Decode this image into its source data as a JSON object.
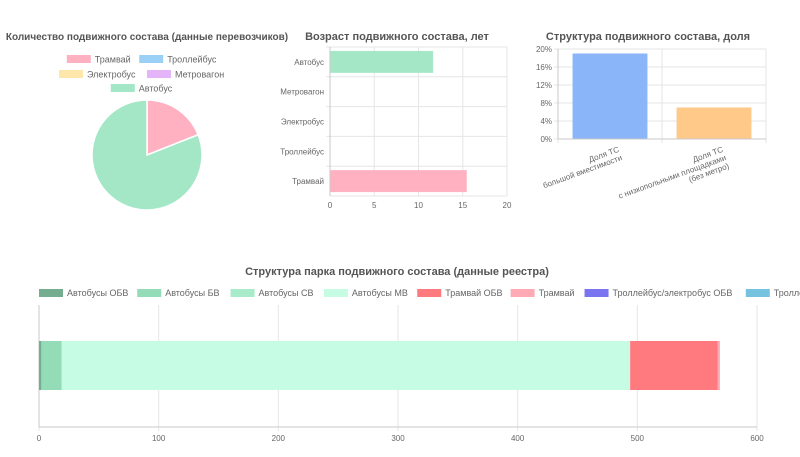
{
  "chart_data": [
    {
      "type": "pie",
      "title": "Количество подвижного состава (данные перевозчиков)",
      "legend_position": "top",
      "slices": [
        {
          "label": "Трамвай",
          "value": 19,
          "color": "#ffb1c1"
        },
        {
          "label": "Троллейбус",
          "value": 0,
          "color": "#9ad0f5"
        },
        {
          "label": "Электробус",
          "value": 0,
          "color": "#ffe6aa"
        },
        {
          "label": "Метровагон",
          "value": 0,
          "color": "#e5b3f7"
        },
        {
          "label": "Автобус",
          "value": 81,
          "color": "#a3e7c6"
        }
      ]
    },
    {
      "type": "bar",
      "orientation": "horizontal",
      "title": "Возраст подвижного состава, лет",
      "categories": [
        "Автобус",
        "Метровагон",
        "Электробус",
        "Троллейбус",
        "Трамвай"
      ],
      "values": [
        11.6,
        0,
        0,
        0,
        15.4
      ],
      "colors": [
        "#a3e7c6",
        "#e5b3f7",
        "#ffe6aa",
        "#9ad0f5",
        "#ffb1c1"
      ],
      "xlim": [
        0,
        20
      ],
      "xticks": [
        0,
        5,
        10,
        15,
        20
      ],
      "grid": true
    },
    {
      "type": "bar",
      "title": "Структура подвижного состава, доля",
      "categories": [
        [
          "Доля ТС",
          "большой вместимости"
        ],
        [
          "Доля ТС",
          "с низкопольными площадками",
          "(без метро)"
        ]
      ],
      "values": [
        19,
        7
      ],
      "colors": [
        "#8ab6f9",
        "#ffc98a"
      ],
      "ylim": [
        0,
        20
      ],
      "yticks": [
        "0%",
        "4%",
        "8%",
        "12%",
        "16%",
        "20%"
      ],
      "grid": true
    },
    {
      "type": "bar",
      "orientation": "horizontal",
      "stacked": true,
      "title": "Структура парка подвижного состава (данные реестра)",
      "legend_position": "top",
      "series": [
        {
          "name": "Автобусы ОБВ",
          "values": [
            2
          ],
          "color": "#74ad8f"
        },
        {
          "name": "Автобусы БВ",
          "values": [
            17
          ],
          "color": "#94dcb8"
        },
        {
          "name": "Автобусы СВ",
          "values": [
            0
          ],
          "color": "#a8ebca"
        },
        {
          "name": "Автобусы МВ",
          "values": [
            475
          ],
          "color": "#c5fce3"
        },
        {
          "name": "Трамвай ОБВ",
          "values": [
            73
          ],
          "color": "#ff7a7f"
        },
        {
          "name": "Трамвай",
          "values": [
            2
          ],
          "color": "#ffaab5"
        },
        {
          "name": "Троллейбус/электробус ОБВ",
          "values": [
            0
          ],
          "color": "#7b74f0"
        },
        {
          "name": "Троллейбус/электробус",
          "values": [
            0
          ],
          "color": "#76c3e0"
        }
      ],
      "xlim": [
        0,
        600
      ],
      "xticks": [
        0,
        100,
        200,
        300,
        400,
        500,
        600
      ],
      "grid": true
    }
  ]
}
